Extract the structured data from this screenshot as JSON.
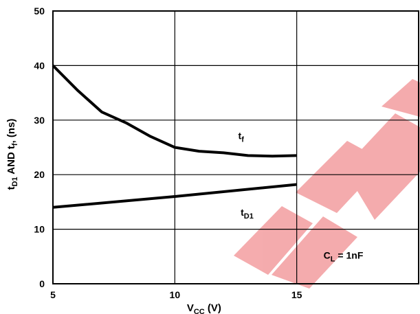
{
  "chart_data": {
    "type": "line",
    "xlabel": "VCC (V)",
    "xlabel_main": "V",
    "xlabel_sub": "CC",
    "xlabel_unit": " (V)",
    "ylabel": "tD1 AND tf, (ns)",
    "ylabel_parts": {
      "t1": "t",
      "s1": "D1",
      "mid": " AND t",
      "s2": "f",
      "end": ", (ns)"
    },
    "xlim": [
      5,
      20
    ],
    "ylim": [
      0,
      50
    ],
    "x_ticks": [
      5,
      10,
      15
    ],
    "y_ticks": [
      0,
      10,
      20,
      30,
      40,
      50
    ],
    "grid": true,
    "series": [
      {
        "name": "tf",
        "x": [
          5,
          6,
          7,
          8,
          9,
          10,
          11,
          12,
          13,
          14,
          15
        ],
        "y": [
          40,
          35.5,
          31.5,
          29.5,
          27,
          25,
          24.3,
          24,
          23.5,
          23.4,
          23.5
        ]
      },
      {
        "name": "tD1",
        "x": [
          5,
          10,
          15
        ],
        "y": [
          14,
          16,
          18.2
        ]
      }
    ],
    "annotations": {
      "tf": {
        "main": "t",
        "sub": "f"
      },
      "tD1": {
        "main": "t",
        "sub": "D1"
      },
      "condition": {
        "main": "C",
        "sub": "L",
        "rest": " = 1nF"
      }
    }
  },
  "watermark": {
    "color": "#e8474c",
    "opacity": 0.45
  }
}
